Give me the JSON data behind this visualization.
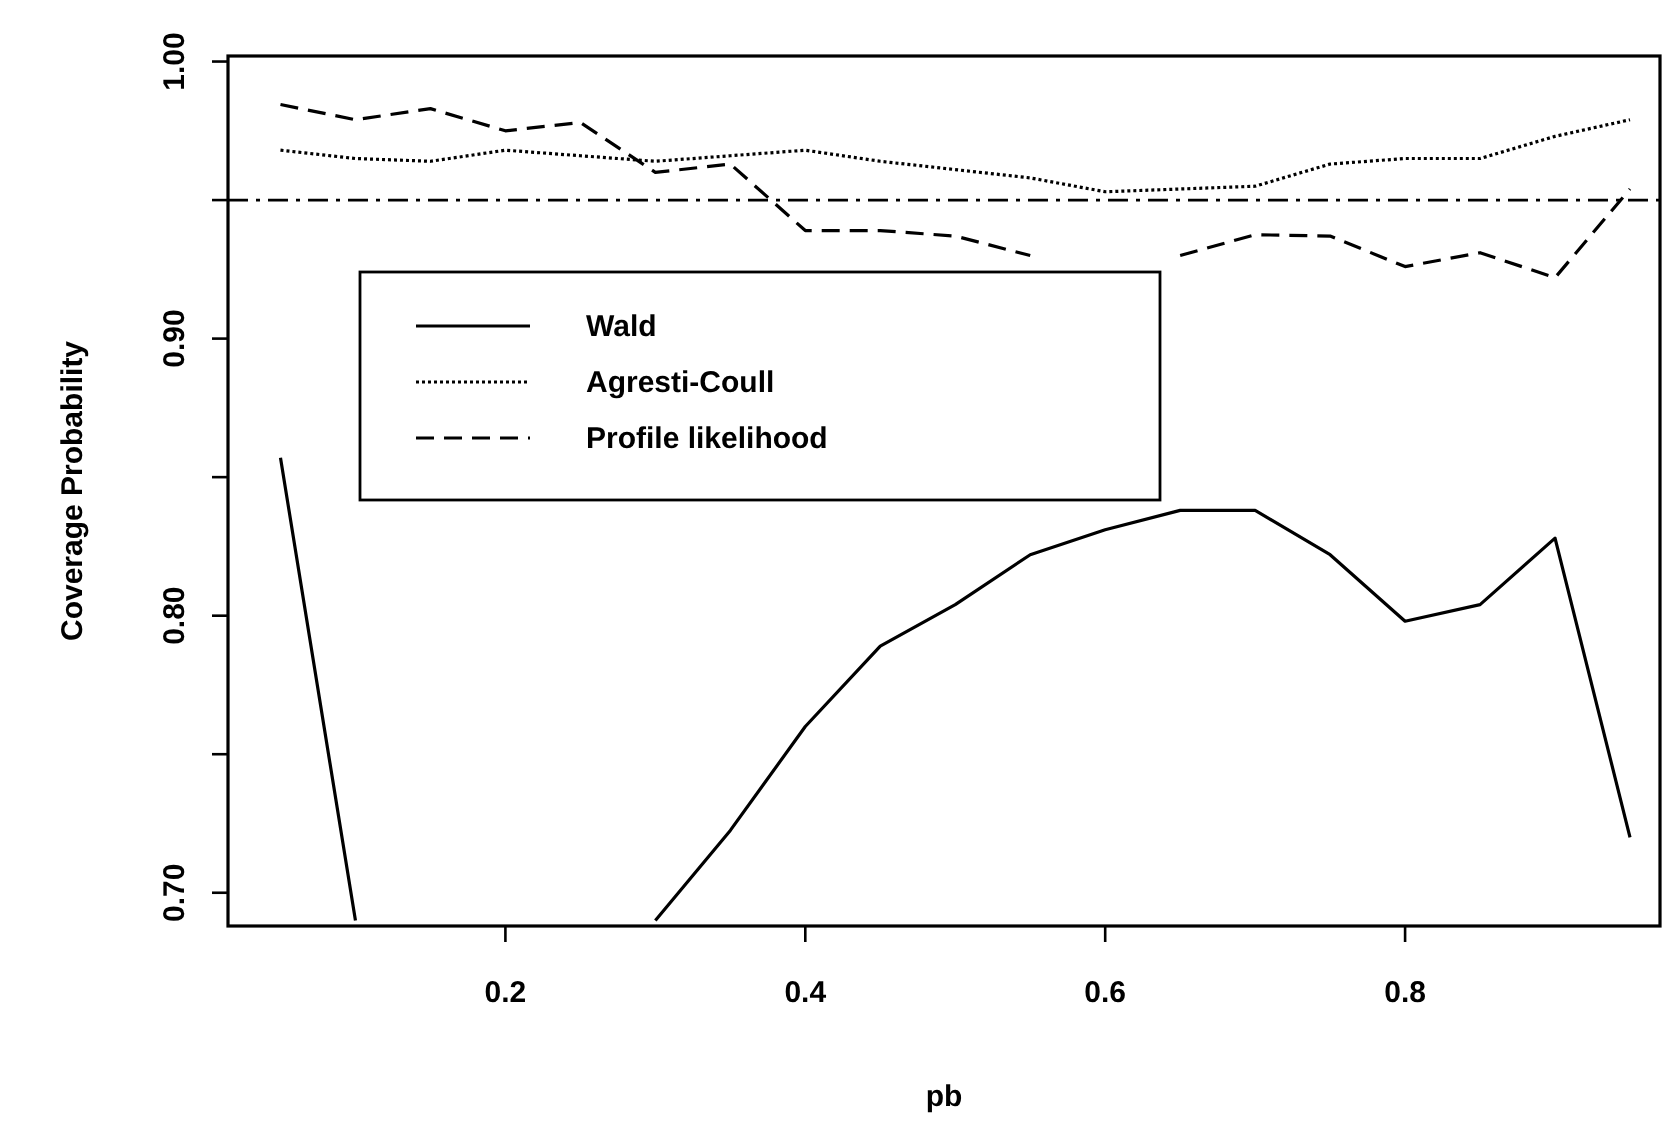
{
  "chart_data": {
    "type": "line",
    "xlabel": "pb",
    "ylabel": "Coverage Probability",
    "x": [
      0.05,
      0.1,
      0.15,
      0.2,
      0.25,
      0.3,
      0.35,
      0.4,
      0.45,
      0.5,
      0.55,
      0.6,
      0.65,
      0.7,
      0.75,
      0.8,
      0.85,
      0.9,
      0.95
    ],
    "series": [
      {
        "name": "Wald",
        "color": "#000000",
        "line_style": "solid",
        "values": [
          0.857,
          0.69,
          null,
          null,
          null,
          0.69,
          0.7225,
          0.76,
          0.789,
          0.804,
          0.822,
          0.831,
          0.838,
          0.838,
          0.822,
          0.798,
          0.804,
          0.828,
          0.72
        ]
      },
      {
        "name": "Agresti-Coull",
        "color": "#000000",
        "line_style": "dotted",
        "values": [
          0.968,
          0.965,
          0.964,
          0.968,
          0.966,
          0.964,
          0.966,
          0.968,
          0.964,
          0.961,
          0.958,
          0.953,
          0.954,
          0.955,
          0.963,
          0.965,
          0.965,
          0.973,
          0.979
        ]
      },
      {
        "name": "Profile likelihood",
        "color": "#000000",
        "line_style": "dashed",
        "values": [
          0.9845,
          0.979,
          0.983,
          0.975,
          0.978,
          0.96,
          0.963,
          0.939,
          0.939,
          0.937,
          0.93,
          null,
          0.93,
          0.9375,
          0.937,
          0.926,
          0.931,
          0.922,
          0.954
        ]
      }
    ],
    "xlim": [
      0.015,
      0.97
    ],
    "xticks": [
      0.2,
      0.4,
      0.6,
      0.8
    ],
    "ylim": [
      0.688,
      1.002
    ],
    "yticks": [
      {
        "value": 0.7,
        "label": "0.70"
      },
      {
        "value": 0.75,
        "label": null
      },
      {
        "value": 0.8,
        "label": "0.80"
      },
      {
        "value": 0.85,
        "label": null
      },
      {
        "value": 0.9,
        "label": "0.90"
      },
      {
        "value": 0.95,
        "label": null
      },
      {
        "value": 1.0,
        "label": "1.00"
      }
    ],
    "ref_lines": [
      {
        "axis": "y",
        "value": 0.95,
        "color": "#000000",
        "line_style": "dashdot"
      }
    ],
    "legend": "top left",
    "grid": false,
    "marker": "none"
  }
}
